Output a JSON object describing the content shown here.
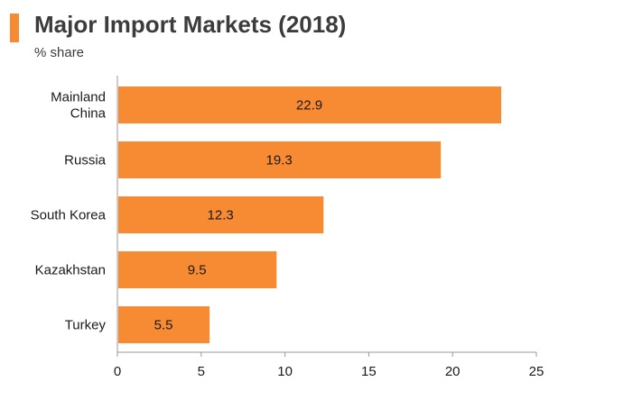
{
  "title": "Major Import Markets (2018)",
  "subtitle": "% share",
  "colors": {
    "bar": "#f68b33",
    "accent": "#f68b33",
    "axis": "#999999"
  },
  "chart_data": {
    "type": "bar",
    "orientation": "horizontal",
    "categories": [
      [
        "Mainland",
        "China"
      ],
      [
        "Russia"
      ],
      [
        "South Korea"
      ],
      [
        "Kazakhstan"
      ],
      [
        "Turkey"
      ]
    ],
    "values": [
      22.9,
      19.3,
      12.3,
      9.5,
      5.5
    ],
    "value_labels": [
      "22.9",
      "19.3",
      "12.3",
      "9.5",
      "5.5"
    ],
    "xlim": [
      0,
      25
    ],
    "xticks": [
      0,
      5,
      10,
      15,
      20,
      25
    ],
    "grid": false,
    "legend": "none"
  }
}
